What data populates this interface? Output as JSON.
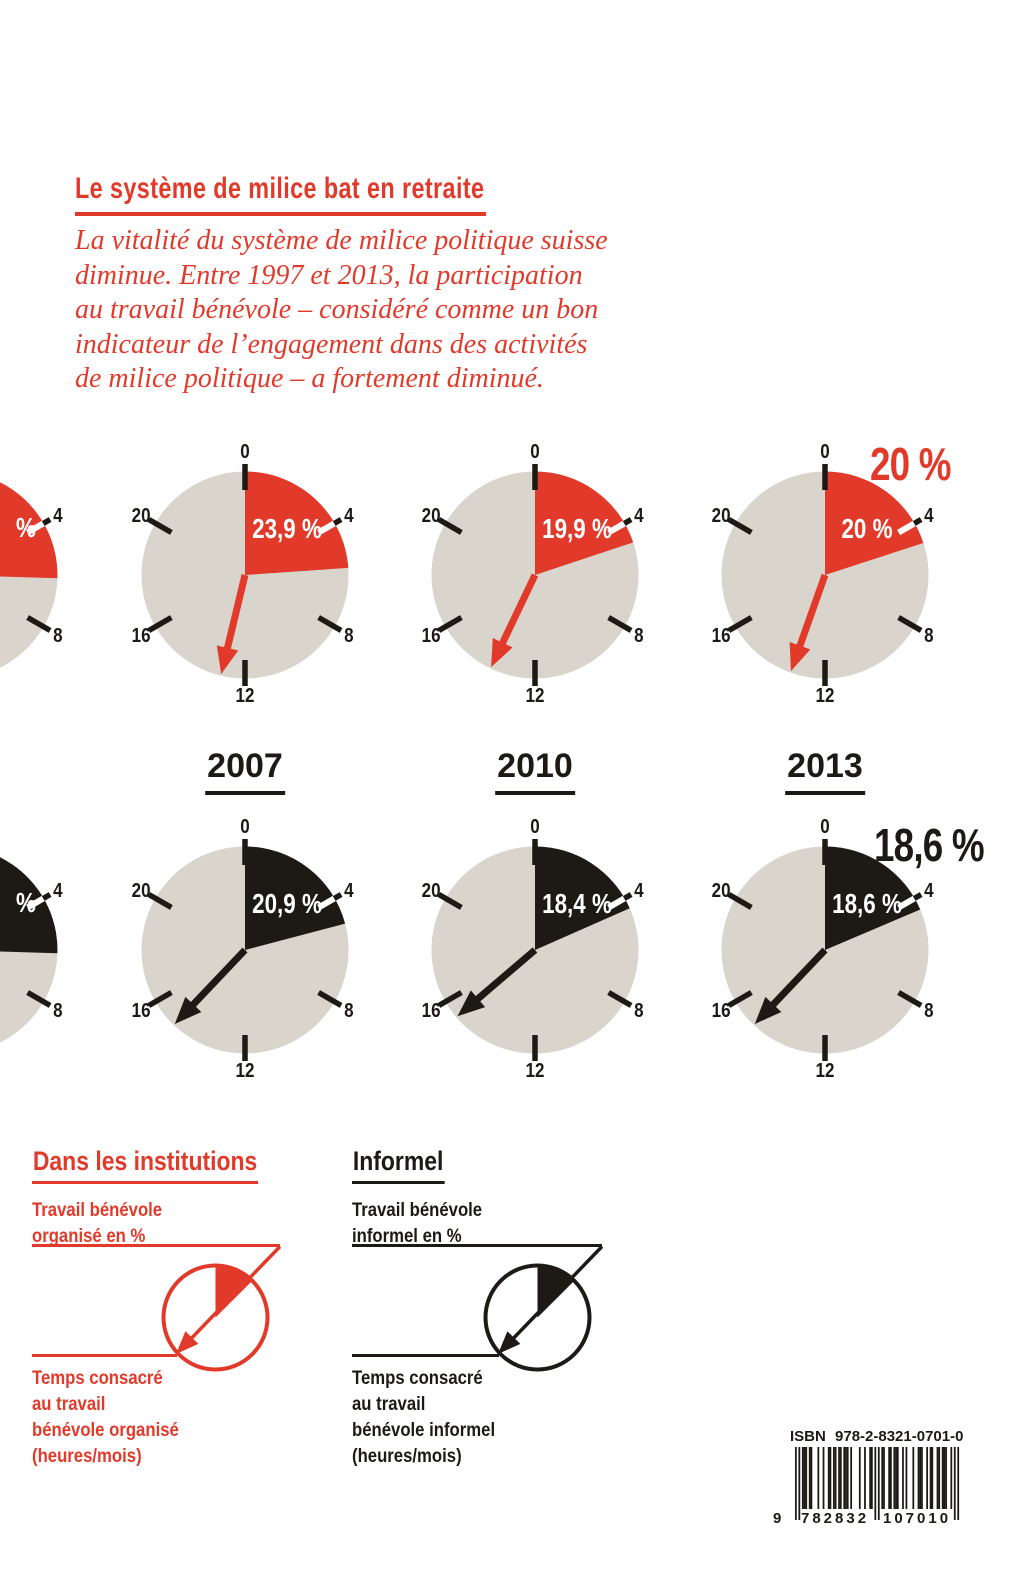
{
  "colors": {
    "red": "#e23a2a",
    "black": "#1d1a15",
    "dial_gray": "#d9d5cc",
    "label_white": "#ffffff"
  },
  "header": {
    "title": "Le système de milice bat en retraite",
    "intro_lines": [
      "La vitalité du système de milice politique suisse",
      "diminue. Entre 1997 et 2013, la participation",
      "au travail bénévole – considéré comme un bon",
      "indicateur de l’engagement dans des activités",
      "de milice politique – a fortement diminué."
    ]
  },
  "chart_data": {
    "type": "pie",
    "variant": "24h-clock-pies",
    "title": "Le système de milice bat en retraite",
    "categories": [
      "2007",
      "2010",
      "2013"
    ],
    "dial_hour_ticks": [
      "0",
      "4",
      "8",
      "12",
      "16",
      "20"
    ],
    "series": [
      {
        "name": "Dans les institutions – travail bénévole organisé en %",
        "color": "#e23a2a",
        "values_percent": [
          23.9,
          19.9,
          20.0
        ],
        "value_labels": [
          "23,9 %",
          "19,9 %",
          "20 %"
        ],
        "hand_hours_per_month": [
          12.9,
          13.7,
          13.3
        ]
      },
      {
        "name": "Informel – travail bénévole informel en %",
        "color": "#1d1a15",
        "values_percent": [
          20.9,
          18.4,
          18.6
        ],
        "value_labels": [
          "20,9 %",
          "18,4 %",
          "18,6 %"
        ],
        "hand_hours_per_month": [
          14.9,
          15.3,
          14.9
        ]
      }
    ],
    "cropped_left_column": {
      "visible_label_fragment": "%",
      "percent_est": 25.5
    }
  },
  "legend": {
    "institutions": {
      "heading": "Dans les institutions",
      "top_label_lines": [
        "Travail bénévole",
        "organisé en %"
      ],
      "bottom_label_lines": [
        "Temps consacré",
        "au travail",
        "bénévole organisé",
        "(heures/mois)"
      ]
    },
    "informel": {
      "heading": "Informel",
      "top_label_lines": [
        "Travail bénévole",
        "informel en %"
      ],
      "bottom_label_lines": [
        "Temps consacré",
        "au travail",
        "bénévole informel",
        "(heures/mois)"
      ]
    }
  },
  "isbn": {
    "label": "ISBN 978-2-8321-0701-0",
    "digits_left": "9",
    "digits_mid": "782832",
    "digits_right": "107010",
    "ean13": "9782832107010",
    "modules": "10101110110001001001101101101110100001001001101010110011011100101000100111001011001101110010101"
  }
}
